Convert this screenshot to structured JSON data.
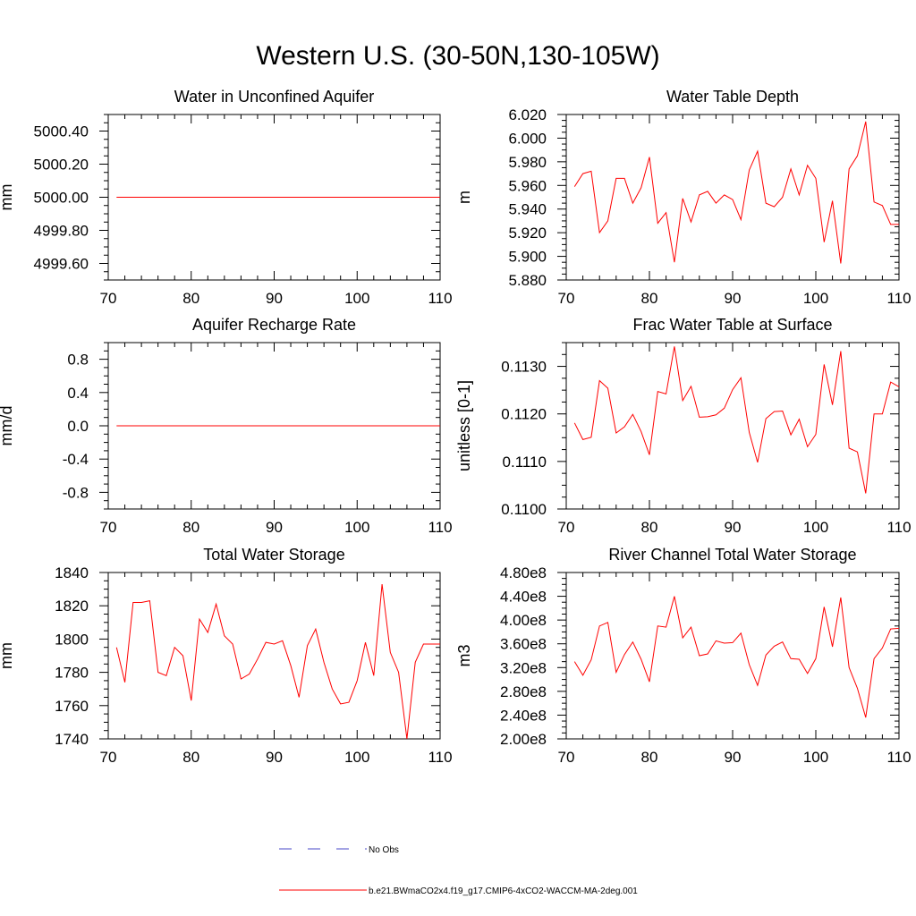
{
  "title": "Western U.S. (30-50N,130-105W)",
  "chart_data": [
    {
      "type": "line",
      "title": "Water in Unconfined Aquifer",
      "ylabel": "mm",
      "xlim": [
        70,
        110
      ],
      "ylim": [
        4999.5,
        5000.5
      ],
      "xticks": [
        70,
        80,
        90,
        100,
        110
      ],
      "yticks": [
        4999.6,
        4999.8,
        5000.0,
        5000.2,
        5000.4
      ],
      "yticklabels": [
        "4999.60",
        "4999.80",
        "5000.00",
        "5000.20",
        "5000.40"
      ],
      "x": [
        71,
        72,
        73,
        74,
        75,
        76,
        77,
        78,
        79,
        80,
        81,
        82,
        83,
        84,
        85,
        86,
        87,
        88,
        89,
        90,
        91,
        92,
        93,
        94,
        95,
        96,
        97,
        98,
        99,
        100,
        101,
        102,
        103,
        104,
        105,
        106,
        107,
        108,
        109,
        110
      ],
      "series": [
        {
          "values": [
            5000,
            5000,
            5000,
            5000,
            5000,
            5000,
            5000,
            5000,
            5000,
            5000,
            5000,
            5000,
            5000,
            5000,
            5000,
            5000,
            5000,
            5000,
            5000,
            5000,
            5000,
            5000,
            5000,
            5000,
            5000,
            5000,
            5000,
            5000,
            5000,
            5000,
            5000,
            5000,
            5000,
            5000,
            5000,
            5000,
            5000,
            5000,
            5000,
            5000
          ]
        }
      ]
    },
    {
      "type": "line",
      "title": "Water Table Depth",
      "ylabel": "m",
      "xlim": [
        70,
        110
      ],
      "ylim": [
        5.88,
        6.02
      ],
      "xticks": [
        70,
        80,
        90,
        100,
        110
      ],
      "yticks": [
        5.88,
        5.9,
        5.92,
        5.94,
        5.96,
        5.98,
        6.0,
        6.02
      ],
      "yticklabels": [
        "5.880",
        "5.900",
        "5.920",
        "5.940",
        "5.960",
        "5.980",
        "6.000",
        "6.020"
      ],
      "x": [
        71,
        72,
        73,
        74,
        75,
        76,
        77,
        78,
        79,
        80,
        81,
        82,
        83,
        84,
        85,
        86,
        87,
        88,
        89,
        90,
        91,
        92,
        93,
        94,
        95,
        96,
        97,
        98,
        99,
        100,
        101,
        102,
        103,
        104,
        105,
        106,
        107,
        108,
        109,
        110
      ],
      "series": [
        {
          "values": [
            5.959,
            5.97,
            5.972,
            5.92,
            5.93,
            5.966,
            5.966,
            5.945,
            5.958,
            5.984,
            5.928,
            5.937,
            5.895,
            5.949,
            5.929,
            5.952,
            5.955,
            5.945,
            5.952,
            5.948,
            5.931,
            5.973,
            5.989,
            5.945,
            5.942,
            5.95,
            5.974,
            5.952,
            5.977,
            5.966,
            5.912,
            5.947,
            5.894,
            5.974,
            5.985,
            6.014,
            5.946,
            5.943,
            5.927,
            5.927
          ]
        }
      ]
    },
    {
      "type": "line",
      "title": "Aquifer Recharge Rate",
      "ylabel": "mm/d",
      "xlim": [
        70,
        110
      ],
      "ylim": [
        -1.0,
        1.0
      ],
      "xticks": [
        70,
        80,
        90,
        100,
        110
      ],
      "yticks": [
        -0.8,
        -0.4,
        0.0,
        0.4,
        0.8
      ],
      "yticklabels": [
        "-0.8",
        "-0.4",
        "0.0",
        "0.4",
        "0.8"
      ],
      "x": [
        71,
        72,
        73,
        74,
        75,
        76,
        77,
        78,
        79,
        80,
        81,
        82,
        83,
        84,
        85,
        86,
        87,
        88,
        89,
        90,
        91,
        92,
        93,
        94,
        95,
        96,
        97,
        98,
        99,
        100,
        101,
        102,
        103,
        104,
        105,
        106,
        107,
        108,
        109,
        110
      ],
      "series": [
        {
          "values": [
            0,
            0,
            0,
            0,
            0,
            0,
            0,
            0,
            0,
            0,
            0,
            0,
            0,
            0,
            0,
            0,
            0,
            0,
            0,
            0,
            0,
            0,
            0,
            0,
            0,
            0,
            0,
            0,
            0,
            0,
            0,
            0,
            0,
            0,
            0,
            0,
            0,
            0,
            0,
            0
          ]
        }
      ]
    },
    {
      "type": "line",
      "title": "Frac Water Table at Surface",
      "ylabel": "unitless [0-1]",
      "xlim": [
        70,
        110
      ],
      "ylim": [
        0.11,
        0.1135
      ],
      "xticks": [
        70,
        80,
        90,
        100,
        110
      ],
      "yticks": [
        0.11,
        0.111,
        0.112,
        0.113
      ],
      "yticklabels": [
        "0.1100",
        "0.1110",
        "0.1120",
        "0.1130"
      ],
      "x": [
        71,
        72,
        73,
        74,
        75,
        76,
        77,
        78,
        79,
        80,
        81,
        82,
        83,
        84,
        85,
        86,
        87,
        88,
        89,
        90,
        91,
        92,
        93,
        94,
        95,
        96,
        97,
        98,
        99,
        100,
        101,
        102,
        103,
        104,
        105,
        106,
        107,
        108,
        109,
        110
      ],
      "series": [
        {
          "values": [
            0.11181,
            0.11146,
            0.11151,
            0.1127,
            0.11254,
            0.1116,
            0.11173,
            0.11199,
            0.11163,
            0.11114,
            0.11247,
            0.11242,
            0.11342,
            0.11228,
            0.11258,
            0.11193,
            0.11194,
            0.11198,
            0.11212,
            0.11251,
            0.11276,
            0.11161,
            0.11098,
            0.1119,
            0.11205,
            0.11206,
            0.11156,
            0.11189,
            0.11131,
            0.11157,
            0.11304,
            0.11219,
            0.11332,
            0.11128,
            0.1112,
            0.11033,
            0.112,
            0.112,
            0.11267,
            0.11257
          ]
        }
      ]
    },
    {
      "type": "line",
      "title": "Total Water Storage",
      "ylabel": "mm",
      "xlim": [
        70,
        110
      ],
      "ylim": [
        1740,
        1840
      ],
      "xticks": [
        70,
        80,
        90,
        100,
        110
      ],
      "yticks": [
        1740,
        1760,
        1780,
        1800,
        1820,
        1840
      ],
      "yticklabels": [
        "1740",
        "1760",
        "1780",
        "1800",
        "1820",
        "1840"
      ],
      "x": [
        71,
        72,
        73,
        74,
        75,
        76,
        77,
        78,
        79,
        80,
        81,
        82,
        83,
        84,
        85,
        86,
        87,
        88,
        89,
        90,
        91,
        92,
        93,
        94,
        95,
        96,
        97,
        98,
        99,
        100,
        101,
        102,
        103,
        104,
        105,
        106,
        107,
        108,
        109,
        110
      ],
      "series": [
        {
          "values": [
            1795,
            1774,
            1822,
            1822,
            1823,
            1780,
            1778,
            1795,
            1790,
            1763,
            1812,
            1804,
            1821,
            1802,
            1797,
            1776,
            1779,
            1788,
            1798,
            1797,
            1799,
            1784,
            1765,
            1796,
            1806,
            1786,
            1770,
            1761,
            1762,
            1775,
            1798,
            1778,
            1833,
            1792,
            1780,
            1740,
            1786,
            1797,
            1797,
            1797
          ]
        }
      ]
    },
    {
      "type": "line",
      "title": "River Channel Total Water Storage",
      "ylabel": "m3",
      "xlim": [
        70,
        110
      ],
      "ylim": [
        200000000,
        480000000
      ],
      "xticks": [
        70,
        80,
        90,
        100,
        110
      ],
      "yticks": [
        200000000,
        240000000,
        280000000,
        320000000,
        360000000,
        400000000,
        440000000,
        480000000
      ],
      "yticklabels": [
        "2.00e8",
        "2.40e8",
        "2.80e8",
        "3.20e8",
        "3.60e8",
        "4.00e8",
        "4.40e8",
        "4.80e8"
      ],
      "x": [
        71,
        72,
        73,
        74,
        75,
        76,
        77,
        78,
        79,
        80,
        81,
        82,
        83,
        84,
        85,
        86,
        87,
        88,
        89,
        90,
        91,
        92,
        93,
        94,
        95,
        96,
        97,
        98,
        99,
        100,
        101,
        102,
        103,
        104,
        105,
        106,
        107,
        108,
        109,
        110
      ],
      "series": [
        {
          "values": [
            330000000,
            307000000,
            333000000,
            390000000,
            396000000,
            312000000,
            342000000,
            363000000,
            334000000,
            296000000,
            390000000,
            388000000,
            440000000,
            370000000,
            388000000,
            340000000,
            343000000,
            365000000,
            361000000,
            362000000,
            378000000,
            325000000,
            290000000,
            341000000,
            356000000,
            363000000,
            335000000,
            334000000,
            310000000,
            335000000,
            422000000,
            355000000,
            438000000,
            320000000,
            285000000,
            236000000,
            335000000,
            353000000,
            385000000,
            386000000
          ]
        }
      ]
    }
  ],
  "legend": [
    {
      "label": "No Obs",
      "color": "#4a4ac8",
      "style": "dashed"
    },
    {
      "label": "b.e21.BWmaCO2x4.f19_g17.CMIP6-4xCO2-WACCM-MA-2deg.001",
      "color": "#ff0000",
      "style": "solid"
    }
  ],
  "colors": {
    "series": "#ff0000",
    "axis": "#000000"
  }
}
